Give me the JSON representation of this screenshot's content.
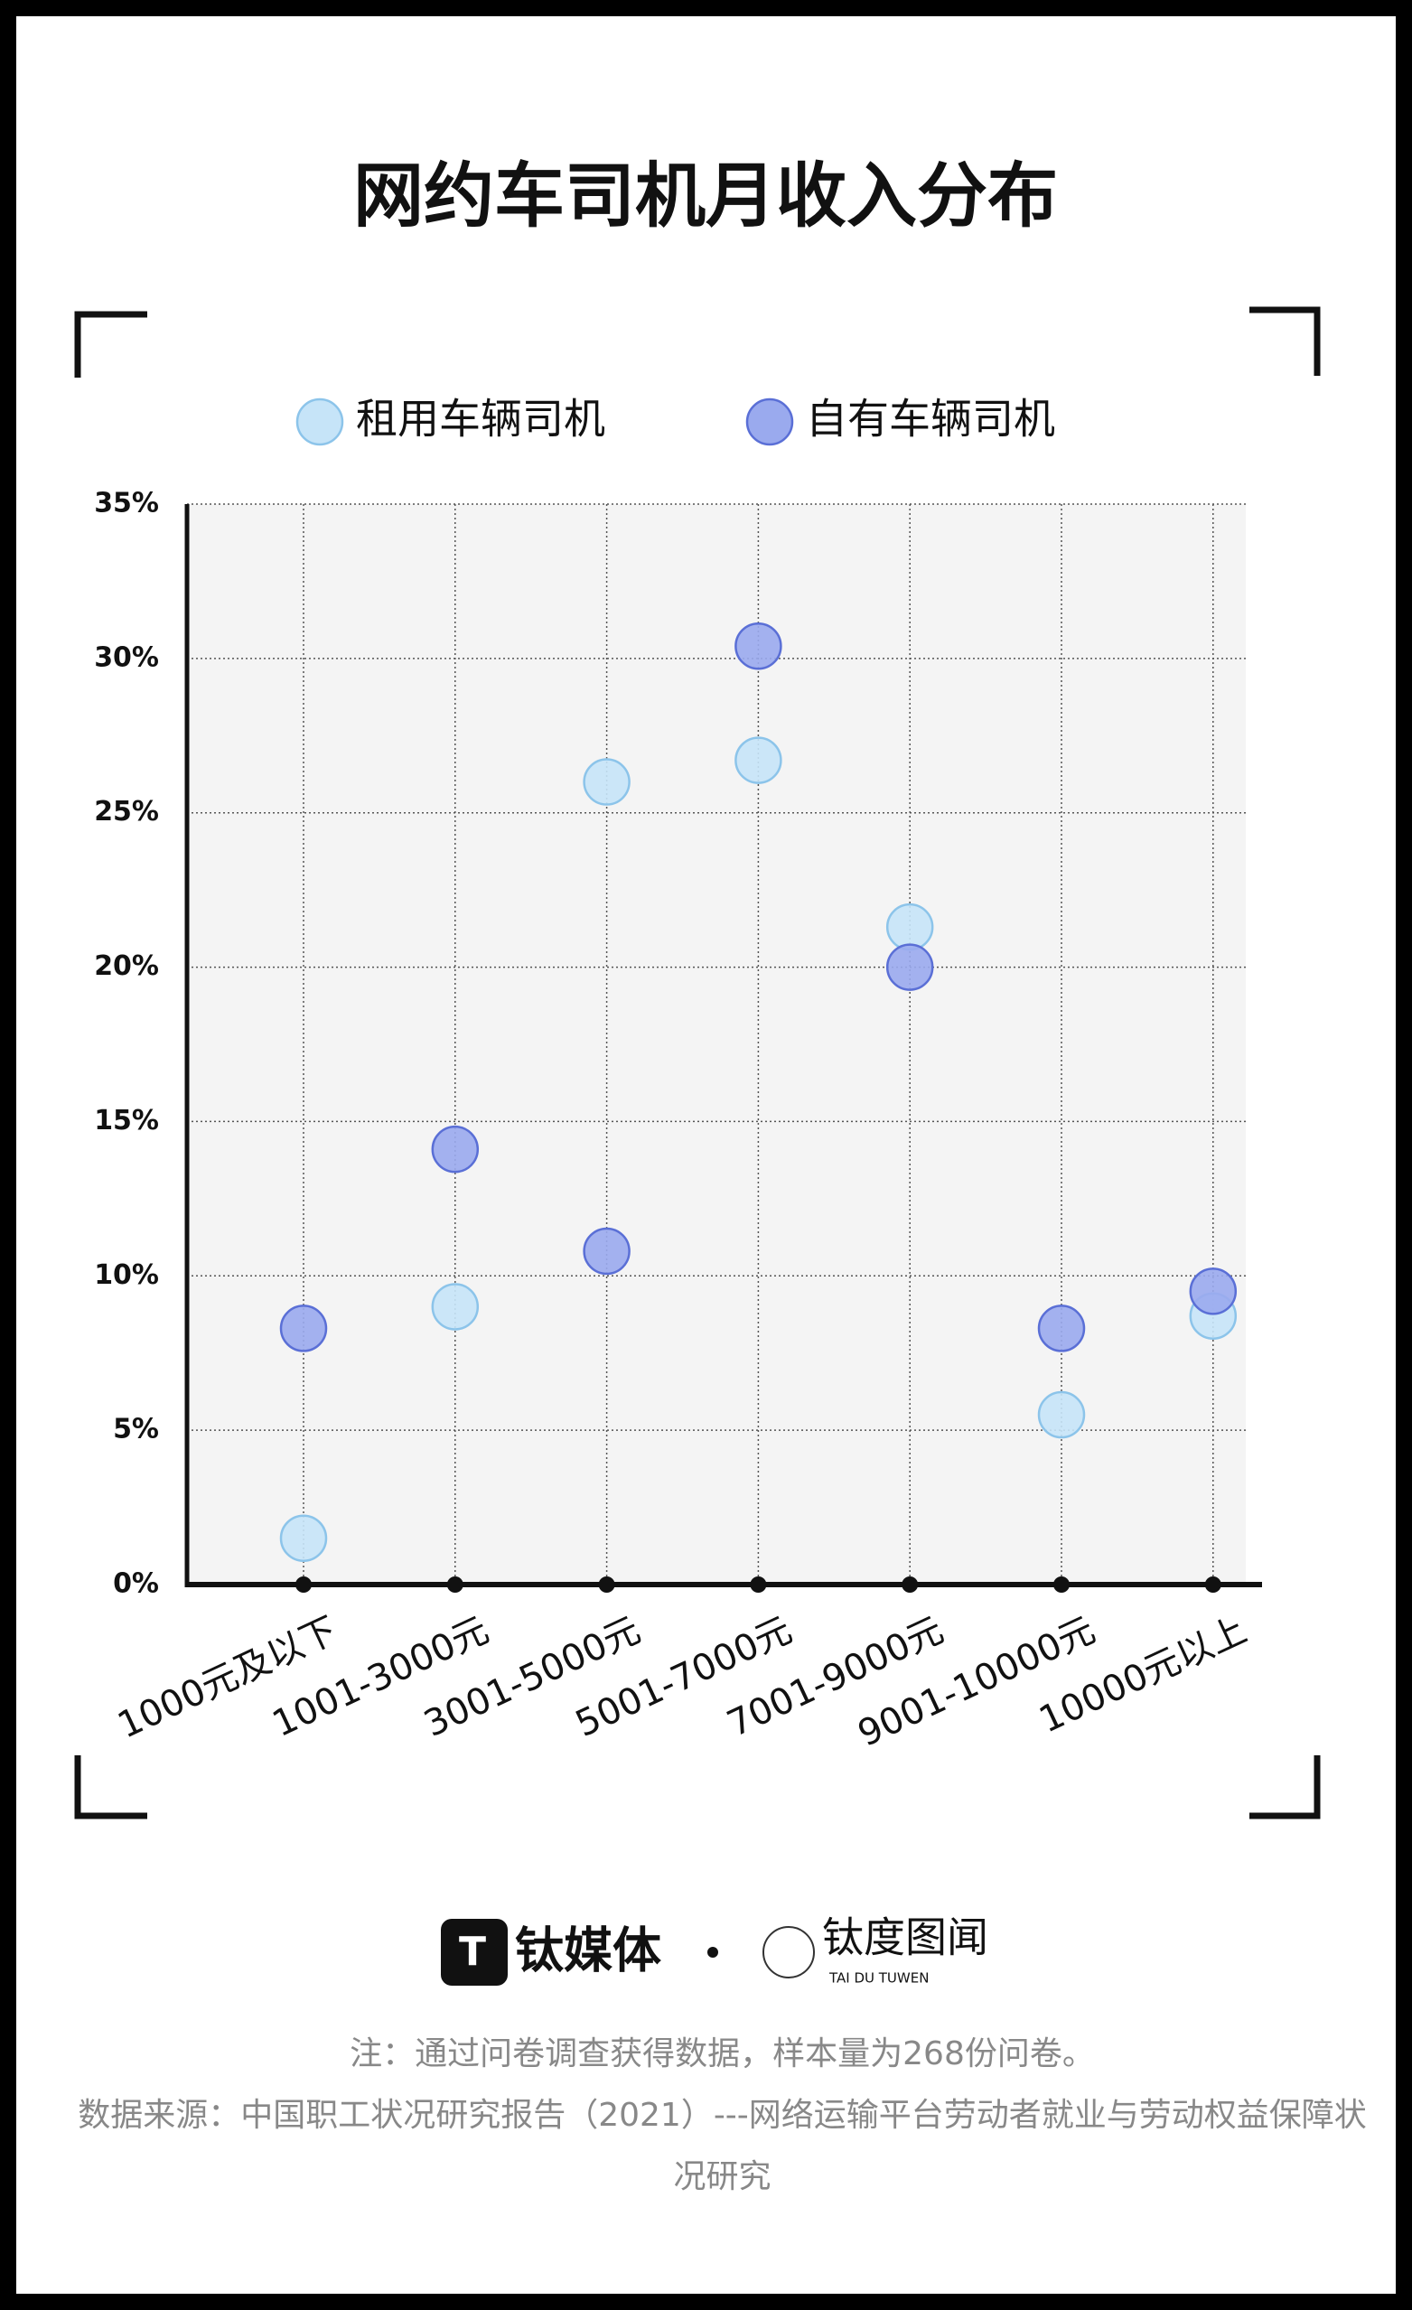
{
  "chart_data": {
    "type": "scatter",
    "title": "网约车司机月收入分布",
    "categories": [
      "1000元及以下",
      "1001-3000元",
      "3001-5000元",
      "5001-7000元",
      "7001-9000元",
      "9001-10000元",
      "10000元以上"
    ],
    "series": [
      {
        "name": "租用车辆司机",
        "color": "#c6e4f8",
        "values": [
          1.5,
          9.0,
          26.0,
          26.7,
          21.3,
          5.5,
          8.7
        ]
      },
      {
        "name": "自有车辆司机",
        "color": "#9aaaee",
        "values": [
          8.3,
          14.1,
          10.8,
          30.4,
          20.0,
          8.3,
          9.5
        ]
      }
    ],
    "ylim": [
      0,
      35
    ],
    "yticks": [
      {
        "value": 0,
        "label": "0%"
      },
      {
        "value": 5,
        "label": "5%"
      },
      {
        "value": 10,
        "label": "10%"
      },
      {
        "value": 15,
        "label": "15%"
      },
      {
        "value": 20,
        "label": "20%"
      },
      {
        "value": 25,
        "label": "25%"
      },
      {
        "value": 30,
        "label": "30%"
      },
      {
        "value": 35,
        "label": "35%"
      }
    ],
    "grid": true
  },
  "footer": {
    "brand1": "钛媒体",
    "brand2": "钛度图闻",
    "brand2_sub": "TAI DU TUWEN",
    "note": "注：通过问卷调查获得数据，样本量为268份问卷。",
    "source": "数据来源：中国职工状况研究报告（2021）---网络运输平台劳动者就业与劳动权益保障状况研究"
  }
}
